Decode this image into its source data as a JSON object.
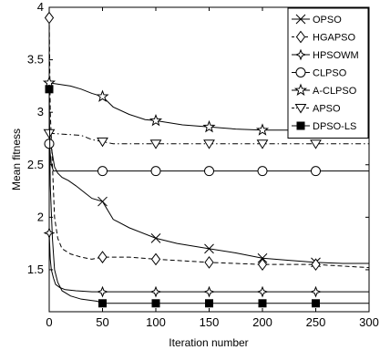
{
  "chart_data": {
    "type": "line",
    "xlabel": "Iteration number",
    "ylabel": "Mean fitness",
    "xlim": [
      0,
      300
    ],
    "ylim": [
      1.1,
      4
    ],
    "xticks": [
      0,
      50,
      100,
      150,
      200,
      250,
      300
    ],
    "yticks": [
      1.5,
      2,
      2.5,
      3,
      3.5,
      4
    ],
    "legend_position": "top-right",
    "grid": false,
    "series": [
      {
        "name": "OPSO",
        "marker": "x",
        "dash": "solid",
        "x": [
          0,
          3,
          5,
          8,
          12,
          18,
          25,
          35,
          40,
          50,
          60,
          75,
          100,
          120,
          150,
          175,
          200,
          225,
          250,
          275,
          300
        ],
        "y": [
          2.8,
          2.6,
          2.48,
          2.42,
          2.38,
          2.35,
          2.3,
          2.22,
          2.18,
          2.15,
          1.98,
          1.9,
          1.8,
          1.75,
          1.7,
          1.66,
          1.61,
          1.59,
          1.57,
          1.56,
          1.56
        ],
        "marker_x": [
          50,
          100,
          150,
          200,
          250
        ]
      },
      {
        "name": "HGAPSO",
        "marker": "diamond",
        "dash": "dashed",
        "x": [
          0,
          1,
          3,
          5,
          8,
          12,
          20,
          30,
          40,
          50,
          75,
          100,
          150,
          200,
          250,
          300
        ],
        "y": [
          3.9,
          3.0,
          2.5,
          2.0,
          1.8,
          1.7,
          1.65,
          1.62,
          1.6,
          1.62,
          1.62,
          1.6,
          1.57,
          1.55,
          1.55,
          1.52
        ],
        "marker_x": [
          0,
          50,
          100,
          150,
          200,
          250
        ]
      },
      {
        "name": "HPSOWM",
        "marker": "star4",
        "dash": "solid",
        "x": [
          0,
          1,
          2,
          4,
          6,
          10,
          15,
          25,
          40,
          50,
          300
        ],
        "y": [
          1.85,
          1.6,
          1.5,
          1.42,
          1.36,
          1.33,
          1.31,
          1.3,
          1.29,
          1.29,
          1.29
        ],
        "marker_x": [
          0,
          50,
          100,
          150,
          200,
          250
        ]
      },
      {
        "name": "CLPSO",
        "marker": "circle",
        "dash": "solid",
        "x": [
          0,
          2,
          4,
          300
        ],
        "y": [
          2.7,
          2.5,
          2.44,
          2.44
        ],
        "marker_x": [
          0,
          50,
          100,
          150,
          200,
          250
        ]
      },
      {
        "name": "A-CLPSO",
        "marker": "star",
        "dash": "solid",
        "x": [
          0,
          20,
          30,
          40,
          50,
          60,
          75,
          90,
          100,
          125,
          150,
          175,
          200,
          300
        ],
        "y": [
          3.28,
          3.25,
          3.22,
          3.18,
          3.15,
          3.05,
          2.98,
          2.93,
          2.92,
          2.88,
          2.86,
          2.84,
          2.83,
          2.83
        ],
        "marker_x": [
          0,
          50,
          100,
          150,
          200,
          250
        ]
      },
      {
        "name": "APSO",
        "marker": "triangle-down",
        "dash": "dashdot",
        "x": [
          0,
          30,
          40,
          50,
          60,
          300
        ],
        "y": [
          2.8,
          2.78,
          2.74,
          2.72,
          2.7,
          2.7
        ],
        "marker_x": [
          0,
          50,
          100,
          150,
          200,
          250
        ]
      },
      {
        "name": "DPSO-LS",
        "marker": "square-filled",
        "dash": "solid",
        "x": [
          0,
          1,
          3,
          5,
          8,
          12,
          20,
          30,
          45,
          50,
          300
        ],
        "y": [
          3.22,
          2.3,
          1.8,
          1.5,
          1.38,
          1.3,
          1.25,
          1.22,
          1.2,
          1.18,
          1.18
        ],
        "marker_x": [
          0,
          50,
          100,
          150,
          200,
          250
        ]
      }
    ]
  }
}
